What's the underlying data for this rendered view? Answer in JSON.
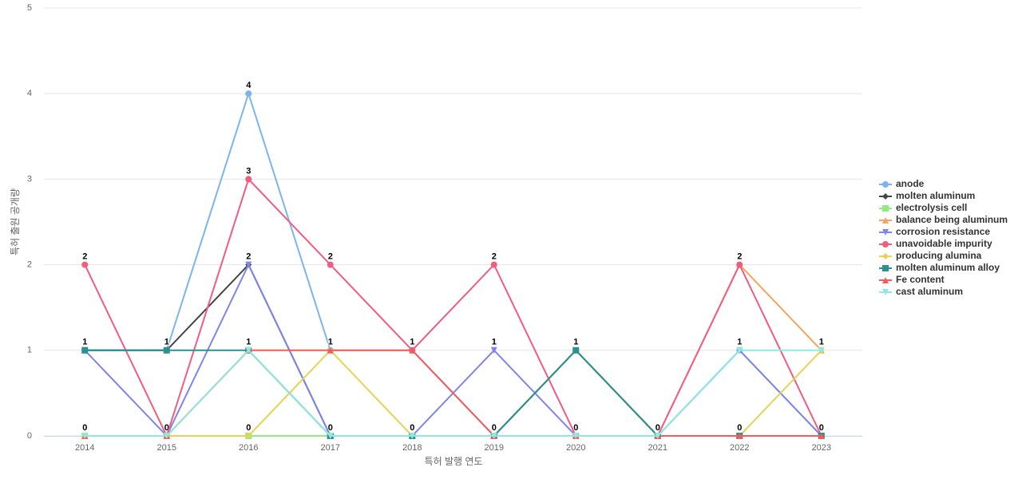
{
  "chart_data": {
    "type": "line",
    "x_label": "특허 발행 연도",
    "y_label": "특허 출원 공개량",
    "categories": [
      "2014",
      "2015",
      "2016",
      "2017",
      "2018",
      "2019",
      "2020",
      "2021",
      "2022",
      "2023"
    ],
    "ylim": [
      0,
      5
    ],
    "yticks": [
      0,
      1,
      2,
      3,
      4,
      5
    ],
    "grid": true,
    "legend": "right",
    "series": [
      {
        "name": "anode",
        "color": "#7cb5ec",
        "marker": "circle",
        "values": [
          1,
          1,
          4,
          1,
          1,
          0,
          0,
          0,
          1,
          0
        ]
      },
      {
        "name": "molten aluminum",
        "color": "#434348",
        "marker": "diamond",
        "values": [
          1,
          1,
          2,
          0,
          0,
          0,
          1,
          0,
          0,
          0
        ]
      },
      {
        "name": "electrolysis cell",
        "color": "#90ed7d",
        "marker": "square",
        "values": [
          0,
          0,
          0,
          0,
          0,
          0,
          0,
          0,
          0,
          0
        ]
      },
      {
        "name": "balance being aluminum",
        "color": "#f7a35c",
        "marker": "triangle",
        "values": [
          0,
          0,
          1,
          0,
          0,
          0,
          0,
          0,
          2,
          1
        ]
      },
      {
        "name": "corrosion resistance",
        "color": "#8085e9",
        "marker": "triangle-down",
        "values": [
          1,
          0,
          2,
          0,
          0,
          1,
          0,
          0,
          1,
          0
        ]
      },
      {
        "name": "unavoidable impurity",
        "color": "#f15c80",
        "marker": "circle",
        "values": [
          2,
          0,
          3,
          2,
          1,
          2,
          0,
          0,
          2,
          0
        ]
      },
      {
        "name": "producing alumina",
        "color": "#e4d354",
        "marker": "diamond",
        "values": [
          0,
          0,
          0,
          1,
          0,
          0,
          0,
          0,
          0,
          1
        ]
      },
      {
        "name": "molten aluminum alloy",
        "color": "#2b908f",
        "marker": "square",
        "values": [
          1,
          1,
          1,
          0,
          0,
          0,
          1,
          0,
          0,
          0
        ]
      },
      {
        "name": "Fe content",
        "color": "#f45b5b",
        "marker": "triangle",
        "values": [
          0,
          0,
          1,
          1,
          1,
          0,
          0,
          0,
          0,
          0
        ]
      },
      {
        "name": "cast aluminum",
        "color": "#91e8e1",
        "marker": "triangle-down",
        "values": [
          0,
          0,
          1,
          0,
          0,
          0,
          0,
          0,
          1,
          1
        ]
      }
    ]
  }
}
